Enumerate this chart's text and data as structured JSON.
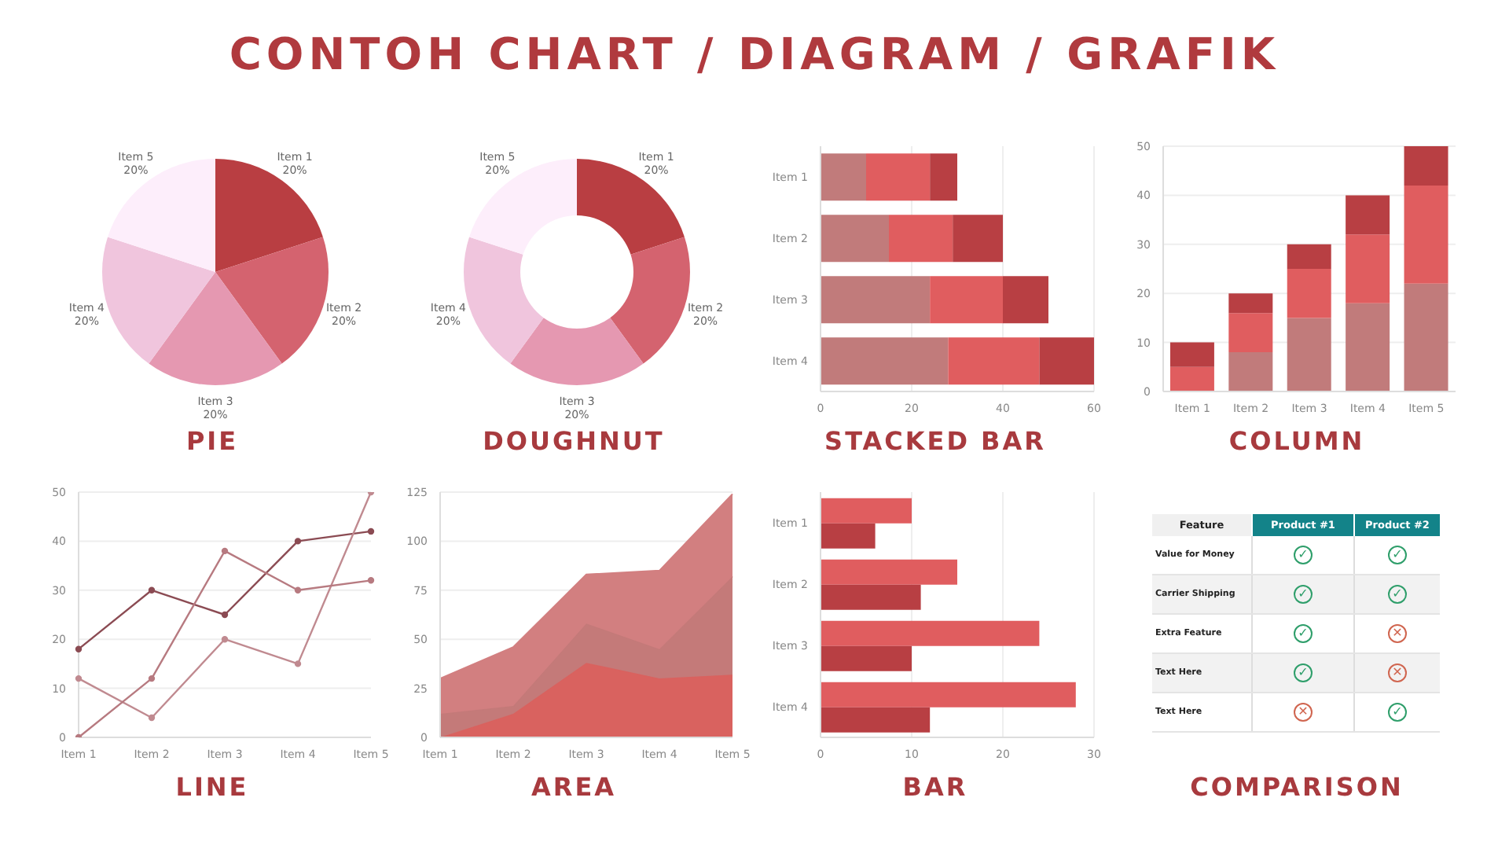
{
  "chart_data": [
    {
      "type": "other",
      "title": "CONTOH CHART / DIAGRAM / GRAFIK"
    },
    {
      "type": "pie",
      "title": "PIE",
      "categories": [
        "Item 1",
        "Item 2",
        "Item 3",
        "Item 4",
        "Item 5"
      ],
      "values": [
        20,
        20,
        20,
        20,
        20
      ],
      "value_labels": [
        "20%",
        "20%",
        "20%",
        "20%",
        "20%"
      ],
      "colors": [
        "#b93e42",
        "#d4636f",
        "#e598b1",
        "#f0c5dd",
        "#fdeefb"
      ]
    },
    {
      "type": "donut",
      "title": "DOUGHNUT",
      "categories": [
        "Item 1",
        "Item 2",
        "Item 3",
        "Item 4",
        "Item 5"
      ],
      "values": [
        20,
        20,
        20,
        20,
        20
      ],
      "value_labels": [
        "20%",
        "20%",
        "20%",
        "20%",
        "20%"
      ],
      "colors": [
        "#b93e42",
        "#d4636f",
        "#e598b1",
        "#f0c5dd",
        "#fdeefb"
      ]
    },
    {
      "type": "bar",
      "title": "STACKED BAR",
      "orientation": "horizontal",
      "stacked": true,
      "categories": [
        "Item 1",
        "Item 2",
        "Item 3",
        "Item 4"
      ],
      "series": [
        {
          "color": "#c17b7b",
          "values": [
            10,
            15,
            24,
            28
          ]
        },
        {
          "color": "#e05d5f",
          "values": [
            14,
            14,
            16,
            20
          ]
        },
        {
          "color": "#b83f43",
          "values": [
            6,
            11,
            10,
            12
          ]
        }
      ],
      "xlim": [
        0,
        60
      ],
      "xticks": [
        0,
        20,
        40,
        60
      ],
      "grid": "x"
    },
    {
      "type": "bar",
      "title": "COLUMN",
      "stacked": true,
      "categories": [
        "Item 1",
        "Item 2",
        "Item 3",
        "Item 4",
        "Item 5"
      ],
      "series": [
        {
          "color": "#c17b7b",
          "values": [
            0,
            8,
            15,
            18,
            22
          ]
        },
        {
          "color": "#e05d5f",
          "values": [
            5,
            8,
            10,
            14,
            20
          ]
        },
        {
          "color": "#b83f43",
          "values": [
            5,
            4,
            5,
            8,
            8
          ]
        }
      ],
      "ylim": [
        0,
        50
      ],
      "yticks": [
        0,
        10,
        20,
        30,
        40,
        50
      ],
      "grid": "y"
    },
    {
      "type": "line",
      "title": "LINE",
      "categories": [
        "Item 1",
        "Item 2",
        "Item 3",
        "Item 4",
        "Item 5"
      ],
      "series": [
        {
          "color": "#8b4b53",
          "values": [
            18,
            30,
            25,
            40,
            42
          ]
        },
        {
          "color": "#c08a90",
          "values": [
            12,
            4,
            20,
            15,
            50
          ]
        },
        {
          "color": "#b77a80",
          "values": [
            0,
            12,
            38,
            30,
            32
          ]
        }
      ],
      "ylim": [
        0,
        50
      ],
      "yticks": [
        0,
        10,
        20,
        30,
        40,
        50
      ],
      "grid": "y",
      "marker": "circle"
    },
    {
      "type": "area",
      "title": "AREA",
      "stacked": true,
      "categories": [
        "Item 1",
        "Item 2",
        "Item 3",
        "Item 4",
        "Item 5"
      ],
      "series": [
        {
          "color": "#d9625f",
          "values": [
            0,
            12,
            38,
            30,
            32
          ]
        },
        {
          "color": "#c47a79",
          "values": [
            12,
            4,
            20,
            15,
            50
          ]
        },
        {
          "color": "#d27f80",
          "values": [
            18,
            30,
            25,
            40,
            42
          ]
        }
      ],
      "ylim": [
        0,
        125
      ],
      "yticks": [
        0,
        25,
        50,
        75,
        100,
        125
      ],
      "grid": "y"
    },
    {
      "type": "bar",
      "title": "BAR",
      "orientation": "horizontal",
      "categories": [
        "Item 1",
        "Item 2",
        "Item 3",
        "Item 4"
      ],
      "series": [
        {
          "color": "#e05d5f",
          "values": [
            10,
            15,
            24,
            28
          ]
        },
        {
          "color": "#b83f43",
          "values": [
            6,
            11,
            10,
            12
          ]
        }
      ],
      "xlim": [
        0,
        30
      ],
      "xticks": [
        0,
        10,
        20,
        30
      ],
      "grid": "x"
    },
    {
      "type": "other",
      "title": "COMPARISON",
      "categories": [
        "Feature",
        "Product #1",
        "Product #2"
      ],
      "y_categories": [
        "Value for Money",
        "Carrier Shipping",
        "Extra Feature",
        "Text Here",
        "Text Here"
      ],
      "cell_labels": [
        [
          "✓",
          "✓"
        ],
        [
          "✓",
          "✓"
        ],
        [
          "✓",
          "✕"
        ],
        [
          "✓",
          "✕"
        ],
        [
          "✕",
          "✓"
        ]
      ],
      "colors": [
        [
          "#2e9e6a",
          "#2e9e6a"
        ],
        [
          "#2e9e6a",
          "#2e9e6a"
        ],
        [
          "#2e9e6a",
          "#d0654f"
        ],
        [
          "#2e9e6a",
          "#d0654f"
        ],
        [
          "#d0654f",
          "#2e9e6a"
        ]
      ],
      "color": "#138389"
    }
  ]
}
